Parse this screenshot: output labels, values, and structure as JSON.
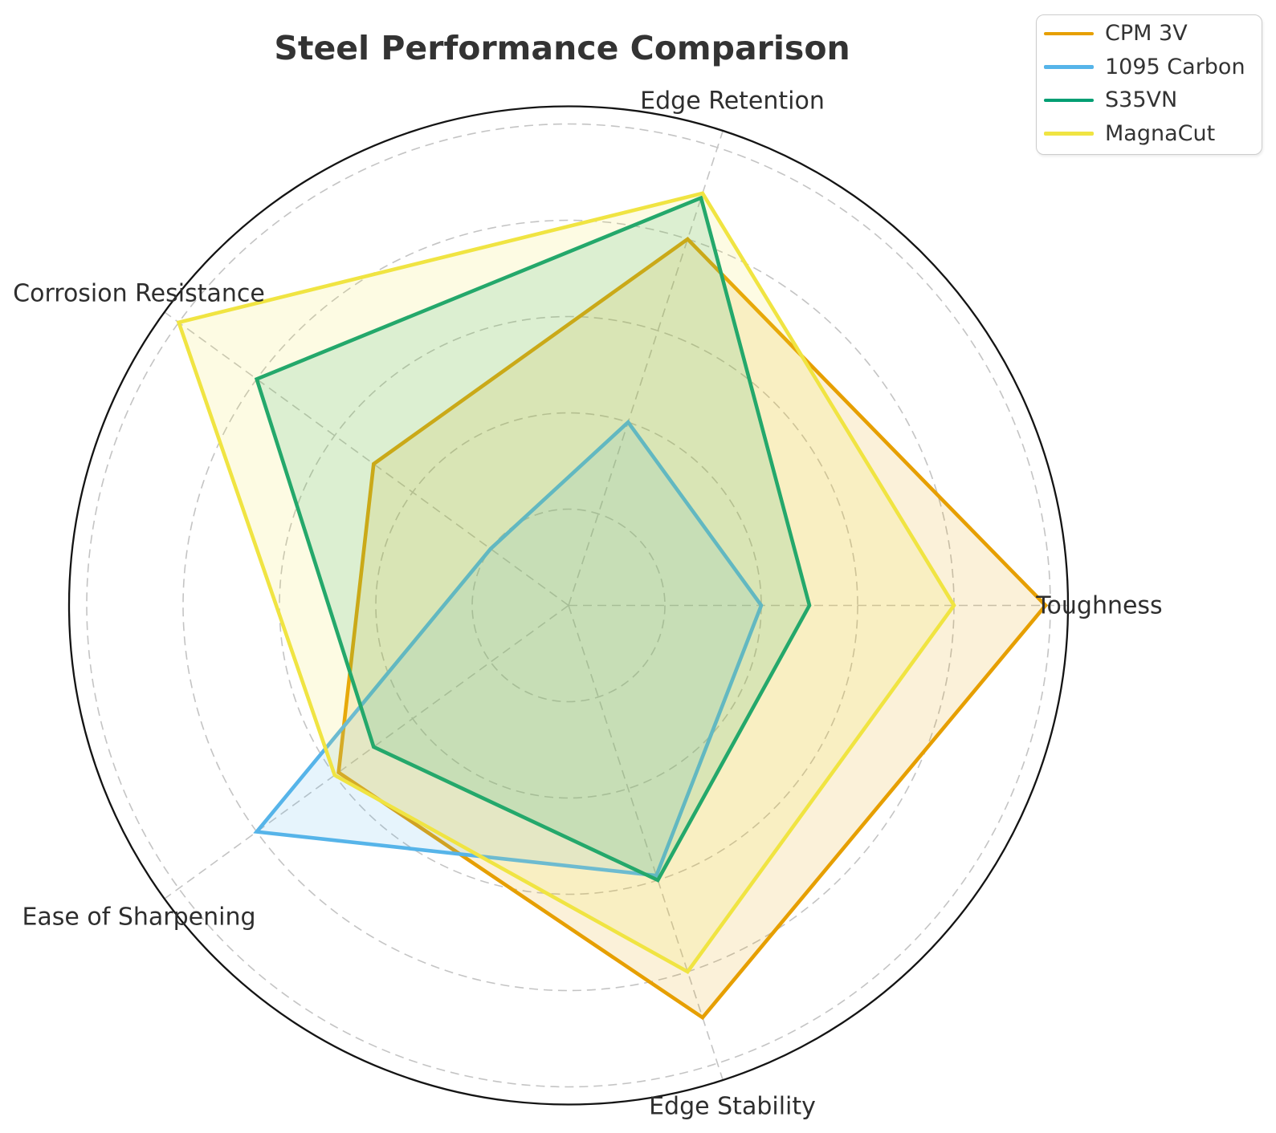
{
  "title": "Steel Performance Comparison",
  "chart_data": {
    "type": "radar",
    "categories": [
      "Toughness",
      "Edge Retention",
      "Corrosion Resistance",
      "Ease of Sharpening",
      "Edge Stability"
    ],
    "series": [
      {
        "name": "CPM 3V",
        "color": "#E69F00",
        "values": [
          9.9,
          8.0,
          5.0,
          5.9,
          9.0
        ]
      },
      {
        "name": "1095 Carbon",
        "color": "#56B4E9",
        "values": [
          4.0,
          4.0,
          2.0,
          8.0,
          5.9
        ]
      },
      {
        "name": "S35VN",
        "color": "#009E73",
        "values": [
          5.0,
          8.9,
          8.0,
          5.0,
          6.0
        ]
      },
      {
        "name": "MagnaCut",
        "color": "#F0E442",
        "values": [
          8.0,
          9.0,
          10.0,
          6.0,
          8.0
        ]
      }
    ],
    "scale": {
      "min": 0,
      "max": 10,
      "gridlines": [
        2,
        4,
        6,
        8,
        10
      ]
    },
    "axis_start_deg": 0,
    "direction": "counterclockwise",
    "grid": true,
    "grid_style": "dashed",
    "legend_position": "upper right",
    "fill_opacity": 0.15,
    "grid_color": "#c4c4c4",
    "ring_color": "#141414",
    "text_color": "#333333"
  }
}
